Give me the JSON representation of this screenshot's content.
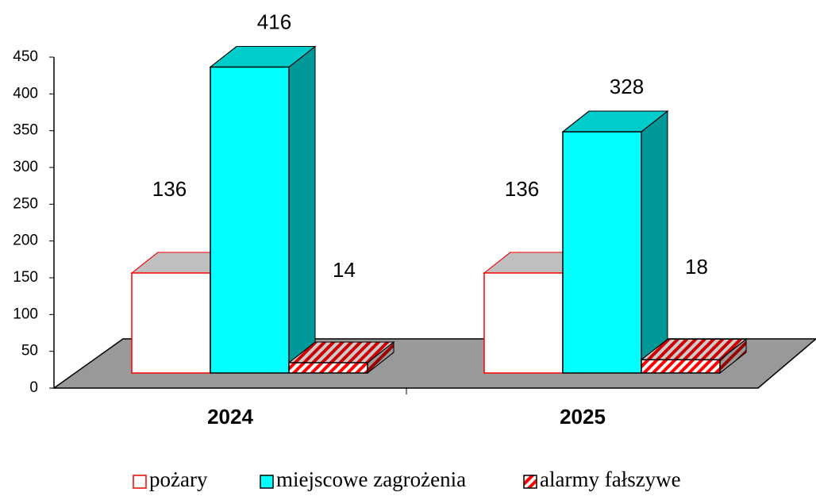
{
  "chart_data": {
    "type": "bar3d",
    "categories": [
      "2024",
      "2025"
    ],
    "series": [
      {
        "name": "pożary",
        "color": "#ffffff",
        "values": [
          136,
          136
        ]
      },
      {
        "name": "miejscowe zagrożenia",
        "color": "#00ffff",
        "values": [
          416,
          328
        ]
      },
      {
        "name": "alarmy fałszywe",
        "color": "#ff0000",
        "values": [
          14,
          18
        ]
      }
    ],
    "ylim": [
      0,
      450
    ],
    "yticks": [
      0,
      50,
      100,
      150,
      200,
      250,
      300,
      350,
      400,
      450
    ]
  }
}
